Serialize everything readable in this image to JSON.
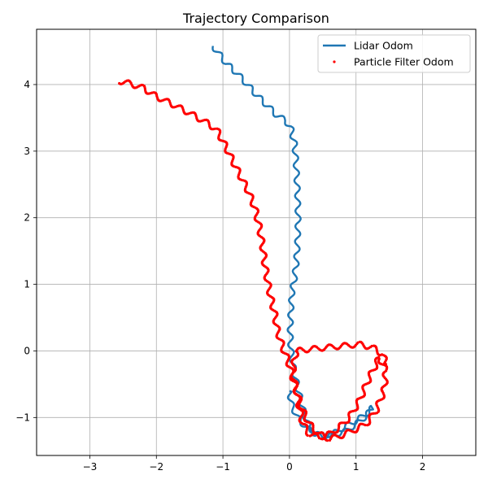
{
  "chart_data": {
    "type": "line",
    "title": "Trajectory Comparison",
    "xlabel": "",
    "ylabel": "",
    "xlim": [
      -3.8,
      2.8
    ],
    "ylim": [
      -1.57,
      4.83
    ],
    "xticks": [
      -3,
      -2,
      -1,
      0,
      1,
      2
    ],
    "yticks": [
      -1,
      0,
      1,
      2,
      3,
      4
    ],
    "xtick_labels": [
      "−3",
      "−2",
      "−1",
      "0",
      "1",
      "2"
    ],
    "ytick_labels": [
      "−1",
      "0",
      "1",
      "2",
      "3",
      "4"
    ],
    "grid": true,
    "legend_position": "top-right",
    "series": [
      {
        "name": "Lidar Odom",
        "style": "line",
        "color": "#1f77b4",
        "x": [
          -1.15,
          -1.05,
          -0.95,
          -0.8,
          -0.65,
          -0.5,
          -0.35,
          -0.2,
          -0.05,
          0.02,
          0.08,
          0.1,
          0.12,
          0.13,
          0.12,
          0.1,
          0.07,
          0.04,
          0.02,
          0.01,
          0.02,
          0.05,
          0.1,
          0.16,
          0.22,
          0.3,
          0.4,
          0.55,
          0.7,
          0.85,
          1.0,
          1.15,
          1.25,
          1.15,
          1.0,
          0.85,
          0.7,
          0.55,
          0.4,
          0.25,
          0.12,
          0.03,
          0.0
        ],
        "y": [
          4.58,
          4.45,
          4.32,
          4.18,
          4.02,
          3.85,
          3.7,
          3.55,
          3.45,
          3.35,
          3.1,
          2.8,
          2.4,
          2.0,
          1.6,
          1.3,
          1.05,
          0.9,
          0.6,
          0.3,
          0.05,
          -0.2,
          -0.45,
          -0.7,
          -0.95,
          -1.15,
          -1.25,
          -1.28,
          -1.25,
          -1.2,
          -1.1,
          -0.98,
          -0.85,
          -0.95,
          -1.05,
          -1.13,
          -1.22,
          -1.27,
          -1.25,
          -1.15,
          -1.0,
          -0.8,
          -0.6
        ]
      },
      {
        "name": "Particle Filter Odom",
        "style": "points",
        "color": "#ff0000",
        "x": [
          -2.55,
          -2.45,
          -2.2,
          -2.0,
          -1.75,
          -1.5,
          -1.25,
          -1.1,
          -1.0,
          -0.9,
          -0.75,
          -0.62,
          -0.52,
          -0.45,
          -0.4,
          -0.37,
          -0.33,
          -0.28,
          -0.22,
          -0.18,
          -0.1,
          -0.02,
          0.05,
          0.12,
          0.2,
          0.3,
          0.45,
          0.6,
          0.75,
          0.95,
          1.15,
          1.3,
          1.42,
          1.45,
          1.35,
          1.2,
          1.05,
          0.9,
          0.75,
          0.6,
          0.45,
          0.3,
          0.2,
          0.12,
          0.05,
          0.1,
          0.25,
          0.45,
          0.65,
          0.85,
          1.05,
          1.25,
          1.4,
          1.45
        ],
        "y": [
          4.05,
          4.03,
          3.95,
          3.82,
          3.7,
          3.57,
          3.43,
          3.33,
          3.15,
          2.95,
          2.65,
          2.4,
          2.15,
          1.85,
          1.55,
          1.3,
          1.05,
          0.8,
          0.55,
          0.3,
          0.05,
          -0.15,
          -0.4,
          -0.65,
          -0.9,
          -1.1,
          -1.25,
          -1.32,
          -1.28,
          -1.2,
          -1.1,
          -0.9,
          -0.6,
          -0.3,
          -0.1,
          -0.4,
          -0.75,
          -1.0,
          -1.15,
          -1.25,
          -1.3,
          -1.25,
          -1.1,
          -0.7,
          -0.3,
          0.0,
          0.02,
          0.04,
          0.06,
          0.08,
          0.1,
          0.05,
          -0.05,
          -0.2
        ]
      }
    ]
  }
}
